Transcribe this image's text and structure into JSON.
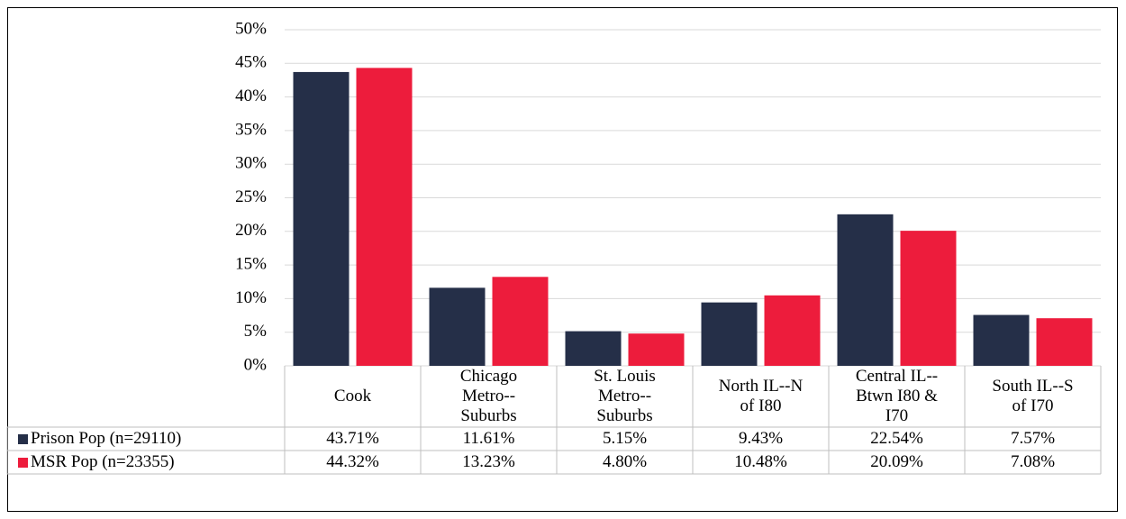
{
  "chart_data": {
    "type": "bar",
    "categories": [
      "Cook",
      "Chicago Metro--Suburbs",
      "St. Louis Metro--Suburbs",
      "North IL--N of I80",
      "Central IL--Btwn I80 & I70",
      "South IL--S of I70"
    ],
    "series": [
      {
        "name": "Prison Pop (n=29110)",
        "color": "#252f48",
        "values": [
          43.71,
          11.61,
          5.15,
          9.43,
          22.54,
          7.57
        ],
        "value_labels": [
          "43.71%",
          "11.61%",
          "5.15%",
          "9.43%",
          "22.54%",
          "7.57%"
        ]
      },
      {
        "name": "MSR Pop (n=23355)",
        "color": "#ed1c3c",
        "values": [
          44.32,
          13.23,
          4.8,
          10.48,
          20.09,
          7.08
        ],
        "value_labels": [
          "44.32%",
          "13.23%",
          "4.80%",
          "10.48%",
          "20.09%",
          "7.08%"
        ]
      }
    ],
    "ylim": [
      0,
      50
    ],
    "yticks": [
      {
        "value": 0,
        "label": "0%"
      },
      {
        "value": 5,
        "label": "5%"
      },
      {
        "value": 10,
        "label": "10%"
      },
      {
        "value": 15,
        "label": "15%"
      },
      {
        "value": 20,
        "label": "20%"
      },
      {
        "value": 25,
        "label": "25%"
      },
      {
        "value": 30,
        "label": "30%"
      },
      {
        "value": 35,
        "label": "35%"
      },
      {
        "value": 40,
        "label": "40%"
      },
      {
        "value": 45,
        "label": "45%"
      },
      {
        "value": 50,
        "label": "50%"
      }
    ],
    "grid": true
  }
}
